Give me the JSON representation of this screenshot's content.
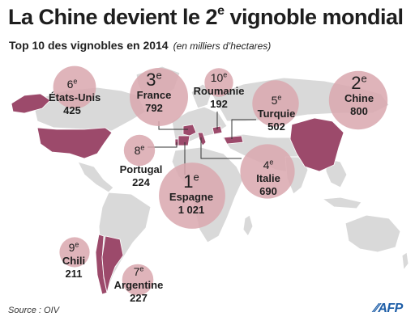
{
  "header": {
    "title_main": "La Chine devient le 2",
    "title_sup": "e",
    "title_end": " vignoble mondial",
    "subtitle": "Top 10 des vignobles en 2014",
    "units": "(en milliers d’hectares)"
  },
  "countries": [
    {
      "id": "usa",
      "rank": "6",
      "suffix": "e",
      "name": "États-Unis",
      "value": "425"
    },
    {
      "id": "france",
      "rank": "3",
      "suffix": "e",
      "name": "France",
      "value": "792"
    },
    {
      "id": "roumanie",
      "rank": "10",
      "suffix": "e",
      "name": "Roumanie",
      "value": "192"
    },
    {
      "id": "turquie",
      "rank": "5",
      "suffix": "e",
      "name": "Turquie",
      "value": "502"
    },
    {
      "id": "chine",
      "rank": "2",
      "suffix": "e",
      "name": "Chine",
      "value": "800"
    },
    {
      "id": "portugal",
      "rank": "8",
      "suffix": "e",
      "name": "Portugal",
      "value": "224"
    },
    {
      "id": "espagne",
      "rank": "1",
      "suffix": "e",
      "name": "Espagne",
      "value": "1 021"
    },
    {
      "id": "italie",
      "rank": "4",
      "suffix": "e",
      "name": "Italie",
      "value": "690"
    },
    {
      "id": "chili",
      "rank": "9",
      "suffix": "e",
      "name": "Chili",
      "value": "211"
    },
    {
      "id": "argentine",
      "rank": "7",
      "suffix": "e",
      "name": "Argentine",
      "value": "227"
    }
  ],
  "colors": {
    "land": "#d9d9d9",
    "highlight": "#9c4a6b",
    "bubble": "#d9a7ae",
    "leader": "#333333"
  },
  "footer": {
    "source": "Source : OIV",
    "logo": "AFP"
  }
}
